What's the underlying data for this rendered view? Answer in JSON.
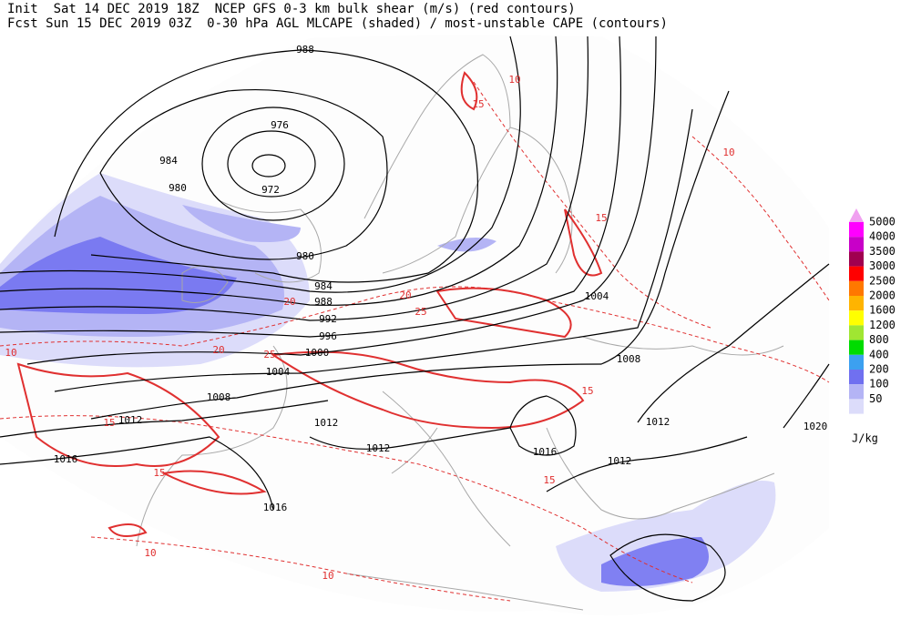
{
  "header": {
    "line1": "Init  Sat 14 DEC 2019 18Z  NCEP GFS 0-3 km bulk shear (m/s) (red contours)",
    "line2": "Fcst Sun 15 DEC 2019 03Z  0-30 hPa AGL MLCAPE (shaded) / most-unstable CAPE (contours)"
  },
  "isobar_labels": [
    "988",
    "976",
    "984",
    "980",
    "972",
    "980",
    "984",
    "988",
    "992",
    "996",
    "1000",
    "1004",
    "1008",
    "1012",
    "1012",
    "1012",
    "1016",
    "1016",
    "1004",
    "1008",
    "1012",
    "1016",
    "1012",
    "1020"
  ],
  "shear_labels": [
    "10",
    "15",
    "20",
    "25",
    "15",
    "10",
    "15",
    "20",
    "25",
    "10",
    "15",
    "10",
    "15",
    "10",
    "20",
    "15"
  ],
  "legend": {
    "levels": [
      {
        "label": "5000",
        "color": "#ff00ff"
      },
      {
        "label": "4000",
        "color": "#c800c8"
      },
      {
        "label": "3500",
        "color": "#a00050"
      },
      {
        "label": "3000",
        "color": "#ff0000"
      },
      {
        "label": "2500",
        "color": "#ff7800"
      },
      {
        "label": "2000",
        "color": "#ffb400"
      },
      {
        "label": "1600",
        "color": "#ffff00"
      },
      {
        "label": "1200",
        "color": "#a0e632"
      },
      {
        "label": "800",
        "color": "#00dc00"
      },
      {
        "label": "400",
        "color": "#3ca0f0"
      },
      {
        "label": "200",
        "color": "#7070f0"
      },
      {
        "label": "100",
        "color": "#b4b4f5"
      },
      {
        "label": "50",
        "color": "#dcdcfa"
      }
    ],
    "unit": "J/kg"
  }
}
